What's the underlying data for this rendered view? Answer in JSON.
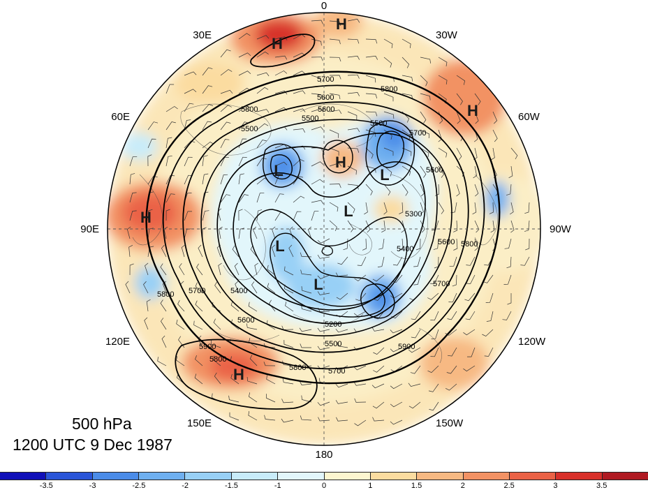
{
  "title": {
    "level": "500 hPa",
    "datetime": "1200 UTC 9 Dec 1987"
  },
  "longitude_labels": {
    "lon_0": "0",
    "lon_30w": "30W",
    "lon_60w": "60W",
    "lon_90w": "90W",
    "lon_120w": "120W",
    "lon_150w": "150W",
    "lon_180": "180",
    "lon_150e": "150E",
    "lon_120e": "120E",
    "lon_90e": "90E",
    "lon_60e": "60E",
    "lon_30e": "30E"
  },
  "pressure_centers": [
    {
      "id": "h1",
      "kind": "H"
    },
    {
      "id": "h2",
      "kind": "H"
    },
    {
      "id": "h3",
      "kind": "H"
    },
    {
      "id": "h4",
      "kind": "H"
    },
    {
      "id": "h5",
      "kind": "H"
    },
    {
      "id": "h6",
      "kind": "H"
    },
    {
      "id": "l1",
      "kind": "L"
    },
    {
      "id": "l2",
      "kind": "L"
    },
    {
      "id": "l3",
      "kind": "L"
    },
    {
      "id": "l4",
      "kind": "L"
    },
    {
      "id": "l5",
      "kind": "L"
    }
  ],
  "contour_labels": [
    "5700",
    "5600",
    "5800",
    "5500",
    "5500",
    "5600",
    "5800",
    "5700",
    "5600",
    "5500",
    "5400",
    "5300",
    "5200",
    "5500",
    "5700",
    "5800",
    "5900",
    "5800",
    "5600",
    "5400",
    "5700",
    "5600",
    "5900",
    "5800",
    "5700",
    "5800"
  ],
  "colorbar": {
    "colors": [
      "#1010b8",
      "#2a55d8",
      "#4b8ce8",
      "#6fb0f0",
      "#98d0f6",
      "#c8ecfa",
      "#e2f6fb",
      "#fdf6d0",
      "#fbdca0",
      "#f7b983",
      "#f29264",
      "#ea6246",
      "#d8302a",
      "#b01a22"
    ],
    "tick_labels": [
      "-3.5",
      "-3",
      "-2.5",
      "-2",
      "-1.5",
      "-1",
      "0",
      "1",
      "1.5",
      "2",
      "2.5",
      "3",
      "3.5"
    ]
  }
}
